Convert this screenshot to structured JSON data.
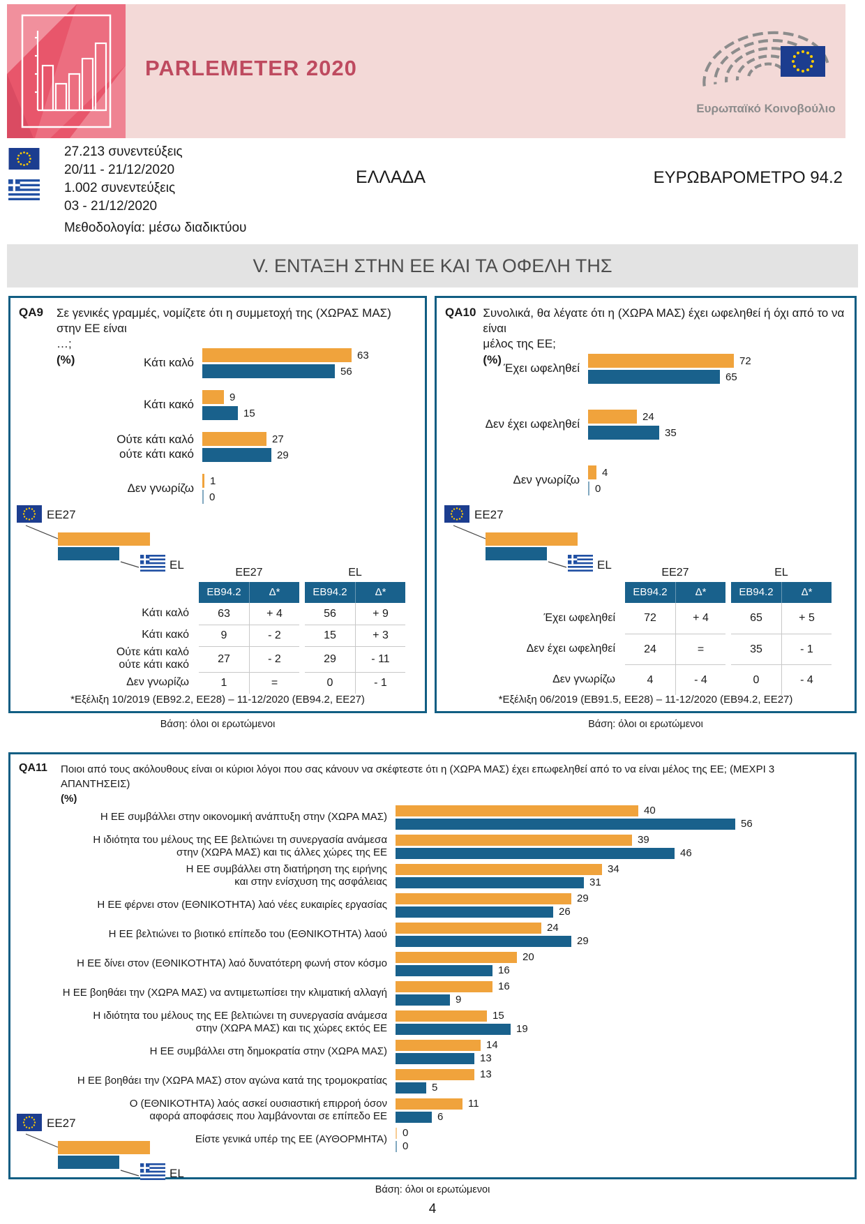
{
  "header": {
    "title": "PARLEMETER 2020",
    "ep_label": "Ευρωπαϊκό Κοινοβούλιο",
    "eu_sample": "27.213 συνεντεύξεις",
    "eu_dates": "20/11 - 21/12/2020",
    "el_sample": "1.002 συνεντεύξεις",
    "el_dates": "03 - 21/12/2020",
    "methodology": "Μεθοδολογία: μέσω διαδικτύου",
    "country": "ΕΛΛΑΔΑ",
    "survey": "ΕΥΡΩΒΑΡΟΜΕΤΡΟ 94.2"
  },
  "section_title": "V. ΕΝΤΑΞΗ ΣΤΗΝ ΕΕ ΚΑΙ ΤΑ ΟΦΕΛΗ ΤΗΣ",
  "legend": {
    "ee27": "EE27",
    "el": "EL"
  },
  "base": "Βάση: όλοι οι ερωτώμενοι",
  "page_number": "4",
  "colors": {
    "ee27": "#F0A33C",
    "el": "#19618C",
    "border": "#115E83",
    "bannerpink": "#F3D9D7",
    "logored": "#E8566B",
    "titlered": "#BE4A5F",
    "band": "#E3E3E3",
    "flagblue": "#1C3D8F",
    "greekblue": "#2150A3",
    "star": "#FFCC00",
    "epgray": "#8C8C8C",
    "rule": "#C8C8C8"
  },
  "qa9": {
    "id": "QA9",
    "question": "Σε γενικές γραμμές, νομίζετε ότι η συμμετοχή της (ΧΩΡΑΣ ΜΑΣ) στην ΕΕ είναι\n…;",
    "unit": "(%)",
    "chart": {
      "rows": [
        {
          "label": "Κάτι καλό",
          "ee27": 63,
          "el": 56
        },
        {
          "label": "Κάτι κακό",
          "ee27": 9,
          "el": 15
        },
        {
          "label": "Ούτε κάτι καλό\nούτε κάτι κακό",
          "ee27": 27,
          "el": 29
        },
        {
          "label": "Δεν γνωρίζω",
          "ee27": 1,
          "el": 0
        }
      ]
    },
    "table": {
      "groups": [
        "EE27",
        "EL"
      ],
      "cols": [
        "EB94.2",
        "Δ*",
        "EB94.2",
        "Δ*"
      ],
      "rows": [
        {
          "label": "Κάτι καλό",
          "values": [
            "63",
            "+ 4",
            "56",
            "+ 9"
          ]
        },
        {
          "label": "Κάτι κακό",
          "values": [
            "9",
            "- 2",
            "15",
            "+ 3"
          ]
        },
        {
          "label": "Ούτε κάτι καλό\nούτε κάτι κακό",
          "values": [
            "27",
            "- 2",
            "29",
            "- 11"
          ]
        },
        {
          "label": "Δεν γνωρίζω",
          "values": [
            "1",
            "=",
            "0",
            "- 1"
          ]
        }
      ],
      "footnote": "*Εξέλιξη 10/2019 (EB92.2, EE28) – 11-12/2020 (EB94.2, EE27)"
    }
  },
  "qa10": {
    "id": "QA10",
    "question": "Συνολικά, θα λέγατε ότι η (ΧΩΡΑ ΜΑΣ) έχει ωφεληθεί ή όχι από το να είναι\nμέλος της ΕΕ;",
    "unit": "(%)",
    "chart": {
      "rows": [
        {
          "label": "Έχει ωφεληθεί",
          "ee27": 72,
          "el": 65
        },
        {
          "label": "Δεν έχει ωφεληθεί",
          "ee27": 24,
          "el": 35
        },
        {
          "label": "Δεν γνωρίζω",
          "ee27": 4,
          "el": 0
        }
      ]
    },
    "table": {
      "groups": [
        "EE27",
        "EL"
      ],
      "cols": [
        "EB94.2",
        "Δ*",
        "EB94.2",
        "Δ*"
      ],
      "rows": [
        {
          "label": "Έχει ωφεληθεί",
          "values": [
            "72",
            "+ 4",
            "65",
            "+ 5"
          ]
        },
        {
          "label": "Δεν έχει ωφεληθεί",
          "values": [
            "24",
            "=",
            "35",
            "- 1"
          ]
        },
        {
          "label": "Δεν γνωρίζω",
          "values": [
            "4",
            "- 4",
            "0",
            "- 4"
          ]
        }
      ],
      "footnote": "*Εξέλιξη 06/2019 (EB91.5, EE28) – 11-12/2020 (EB94.2, EE27)"
    }
  },
  "qa11": {
    "id": "QA11",
    "question": "Ποιοι από τους ακόλουθους είναι οι κύριοι λόγοι που σας κάνουν να σκέφτεστε ότι η (ΧΩΡΑ ΜΑΣ) έχει επωφεληθεί από το να είναι μέλος της ΕΕ; (ΜΕΧΡΙ 3 ΑΠΑΝΤΗΣΕΙΣ)",
    "unit": "(%)",
    "chart": {
      "rows": [
        {
          "label": "Η ΕΕ συμβάλλει στην οικονομική ανάπτυξη στην (ΧΩΡΑ ΜΑΣ)",
          "ee27": 40,
          "el": 56
        },
        {
          "label": "Η ιδιότητα του μέλους της ΕΕ βελτιώνει τη συνεργασία ανάμεσα\nστην (ΧΩΡΑ ΜΑΣ) και τις άλλες χώρες της ΕΕ",
          "ee27": 39,
          "el": 46
        },
        {
          "label": "Η ΕΕ συμβάλλει στη διατήρηση της ειρήνης\nκαι στην ενίσχυση της ασφάλειας",
          "ee27": 34,
          "el": 31
        },
        {
          "label": "Η ΕΕ φέρνει στον (ΕΘΝΙΚΟΤΗΤΑ) λαό νέες ευκαιρίες εργασίας",
          "ee27": 29,
          "el": 26
        },
        {
          "label": "Η ΕΕ βελτιώνει το βιοτικό επίπεδο του (ΕΘΝΙΚΟΤΗΤΑ) λαού",
          "ee27": 24,
          "el": 29
        },
        {
          "label": "Η ΕΕ δίνει στον (ΕΘΝΙΚΟΤΗΤΑ) λαό δυνατότερη φωνή στον κόσμο",
          "ee27": 20,
          "el": 16
        },
        {
          "label": "Η ΕΕ βοηθάει την (ΧΩΡΑ ΜΑΣ) να αντιμετωπίσει την κλιματική αλλαγή",
          "ee27": 16,
          "el": 9
        },
        {
          "label": "Η ιδιότητα του μέλους της ΕΕ βελτιώνει τη συνεργασία ανάμεσα\nστην (ΧΩΡΑ ΜΑΣ) και τις χώρες εκτός ΕΕ",
          "ee27": 15,
          "el": 19
        },
        {
          "label": "Η ΕΕ συμβάλλει στη δημοκρατία στην (ΧΩΡΑ ΜΑΣ)",
          "ee27": 14,
          "el": 13
        },
        {
          "label": "Η ΕΕ βοηθάει την (ΧΩΡΑ ΜΑΣ) στον αγώνα κατά της τρομοκρατίας",
          "ee27": 13,
          "el": 5
        },
        {
          "label": "Ο (ΕΘΝΙΚΟΤΗΤΑ) λαός ασκεί ουσιαστική επιρροή όσον\nαφορά αποφάσεις που λαμβάνονται σε επίπεδο ΕΕ",
          "ee27": 11,
          "el": 6
        },
        {
          "label": "Είστε γενικά υπέρ της ΕΕ (ΑΥΘΟΡΜΗΤΑ)",
          "ee27": 0,
          "el": 0
        }
      ]
    }
  },
  "chart_data": [
    {
      "type": "bar",
      "id": "QA9",
      "title": "Σε γενικές γραμμές, νομίζετε ότι η συμμετοχή της (ΧΩΡΑΣ ΜΑΣ) στην ΕΕ είναι …;",
      "unit": "%",
      "categories": [
        "Κάτι καλό",
        "Κάτι κακό",
        "Ούτε κάτι καλό ούτε κάτι κακό",
        "Δεν γνωρίζω"
      ],
      "series": [
        {
          "name": "EE27",
          "values": [
            63,
            9,
            27,
            1
          ]
        },
        {
          "name": "EL",
          "values": [
            56,
            15,
            29,
            0
          ]
        }
      ],
      "deltas": {
        "EE27": [
          "+ 4",
          "- 2",
          "- 2",
          "="
        ],
        "EL": [
          "+ 9",
          "+ 3",
          "- 11",
          "- 1"
        ]
      },
      "legend_position": "bottom-left"
    },
    {
      "type": "bar",
      "id": "QA10",
      "title": "Συνολικά, θα λέγατε ότι η (ΧΩΡΑ ΜΑΣ) έχει ωφεληθεί ή όχι από το να είναι μέλος της ΕΕ;",
      "unit": "%",
      "categories": [
        "Έχει ωφεληθεί",
        "Δεν έχει ωφεληθεί",
        "Δεν γνωρίζω"
      ],
      "series": [
        {
          "name": "EE27",
          "values": [
            72,
            24,
            4
          ]
        },
        {
          "name": "EL",
          "values": [
            65,
            35,
            0
          ]
        }
      ],
      "deltas": {
        "EE27": [
          "+ 4",
          "=",
          "- 4"
        ],
        "EL": [
          "+ 5",
          "- 1",
          "- 4"
        ]
      },
      "legend_position": "bottom-left"
    },
    {
      "type": "bar",
      "id": "QA11",
      "title": "Ποιοι από τους ακόλουθους είναι οι κύριοι λόγοι που σας κάνουν να σκέφτεστε ότι η (ΧΩΡΑ ΜΑΣ) έχει επωφεληθεί από το να είναι μέλος της ΕΕ; (ΜΕΧΡΙ 3 ΑΠΑΝΤΗΣΕΙΣ)",
      "unit": "%",
      "categories": [
        "Η ΕΕ συμβάλλει στην οικονομική ανάπτυξη στην (ΧΩΡΑ ΜΑΣ)",
        "Η ιδιότητα του μέλους της ΕΕ βελτιώνει τη συνεργασία ανάμεσα στην (ΧΩΡΑ ΜΑΣ) και τις άλλες χώρες της ΕΕ",
        "Η ΕΕ συμβάλλει στη διατήρηση της ειρήνης και στην ενίσχυση της ασφάλειας",
        "Η ΕΕ φέρνει στον (ΕΘΝΙΚΟΤΗΤΑ) λαό νέες ευκαιρίες εργασίας",
        "Η ΕΕ βελτιώνει το βιοτικό επίπεδο του (ΕΘΝΙΚΟΤΗΤΑ) λαού",
        "Η ΕΕ δίνει στον (ΕΘΝΙΚΟΤΗΤΑ) λαό δυνατότερη φωνή στον κόσμο",
        "Η ΕΕ βοηθάει την (ΧΩΡΑ ΜΑΣ) να αντιμετωπίσει την κλιματική αλλαγή",
        "Η ιδιότητα του μέλους της ΕΕ βελτιώνει τη συνεργασία ανάμεσα στην (ΧΩΡΑ ΜΑΣ) και τις χώρες εκτός ΕΕ",
        "Η ΕΕ συμβάλλει στη δημοκρατία στην (ΧΩΡΑ ΜΑΣ)",
        "Η ΕΕ βοηθάει την (ΧΩΡΑ ΜΑΣ) στον αγώνα κατά της τρομοκρατίας",
        "Ο (ΕΘΝΙΚΟΤΗΤΑ) λαός ασκεί ουσιαστική επιρροή όσον αφορά αποφάσεις που λαμβάνονται σε επίπεδο ΕΕ",
        "Είστε γενικά υπέρ της ΕΕ (ΑΥΘΟΡΜΗΤΑ)"
      ],
      "series": [
        {
          "name": "EE27",
          "values": [
            40,
            39,
            34,
            29,
            24,
            20,
            16,
            15,
            14,
            13,
            11,
            0
          ]
        },
        {
          "name": "EL",
          "values": [
            56,
            46,
            31,
            26,
            29,
            16,
            9,
            19,
            13,
            5,
            6,
            0
          ]
        }
      ],
      "legend_position": "bottom-left"
    }
  ]
}
